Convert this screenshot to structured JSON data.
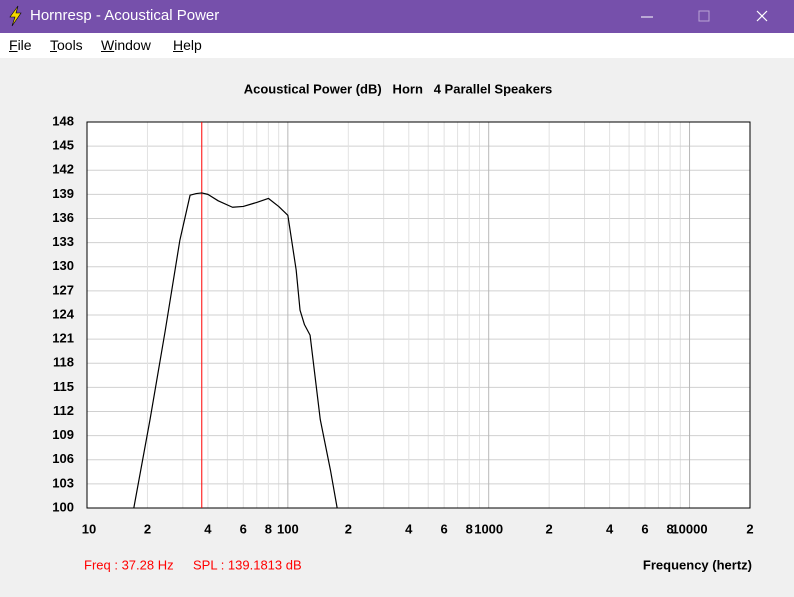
{
  "window": {
    "title": "Hornresp - Acoustical Power"
  },
  "menu": [
    "File",
    "Tools",
    "Window",
    "Help"
  ],
  "cursor": {
    "freq_label": "Freq : 37.28 Hz",
    "spl_label": "SPL : 139.1813 dB",
    "freq": 37.28,
    "color": "#ff0000"
  },
  "chart_data": {
    "type": "line",
    "title": "Acoustical Power (dB)   Horn   4 Parallel Speakers",
    "x_label": "Frequency (hertz)",
    "xscale": "log",
    "xlim": [
      10,
      20000
    ],
    "ylim": [
      100,
      148
    ],
    "xticks": [
      10,
      {
        "value": 20,
        "label": "2"
      },
      {
        "value": 40,
        "label": "4"
      },
      {
        "value": 60,
        "label": "6"
      },
      {
        "value": 80,
        "label": "8"
      },
      100,
      {
        "value": 200,
        "label": "2"
      },
      {
        "value": 400,
        "label": "4"
      },
      {
        "value": 600,
        "label": "6"
      },
      {
        "value": 800,
        "label": "8"
      },
      1000,
      {
        "value": 2000,
        "label": "2"
      },
      {
        "value": 4000,
        "label": "4"
      },
      {
        "value": 6000,
        "label": "6"
      },
      {
        "value": 8000,
        "label": "8"
      },
      10000,
      {
        "value": 20000,
        "label": "2"
      }
    ],
    "xgrid_minor": [
      30,
      50,
      70,
      90,
      300,
      500,
      700,
      900,
      3000,
      5000,
      7000,
      9000
    ],
    "yticks": [
      100,
      103,
      106,
      109,
      112,
      115,
      118,
      121,
      124,
      127,
      130,
      133,
      136,
      139,
      142,
      145,
      148
    ],
    "grid": true,
    "series": [
      {
        "name": "Acoustical Power",
        "color": "#000000",
        "x": [
          17.1,
          20.6,
          24.5,
          29,
          32.6,
          35,
          37.28,
          40,
          45,
          53,
          60,
          70,
          80,
          90,
          100,
          110,
          115,
          121,
          129,
          145,
          163,
          176
        ],
        "values": [
          100,
          111,
          122,
          133.3,
          138.9,
          139.1,
          139.18,
          139,
          138.2,
          137.4,
          137.5,
          138,
          138.5,
          137.5,
          136.4,
          129.6,
          124.6,
          122.8,
          121.5,
          111,
          104.7,
          100
        ]
      }
    ]
  }
}
